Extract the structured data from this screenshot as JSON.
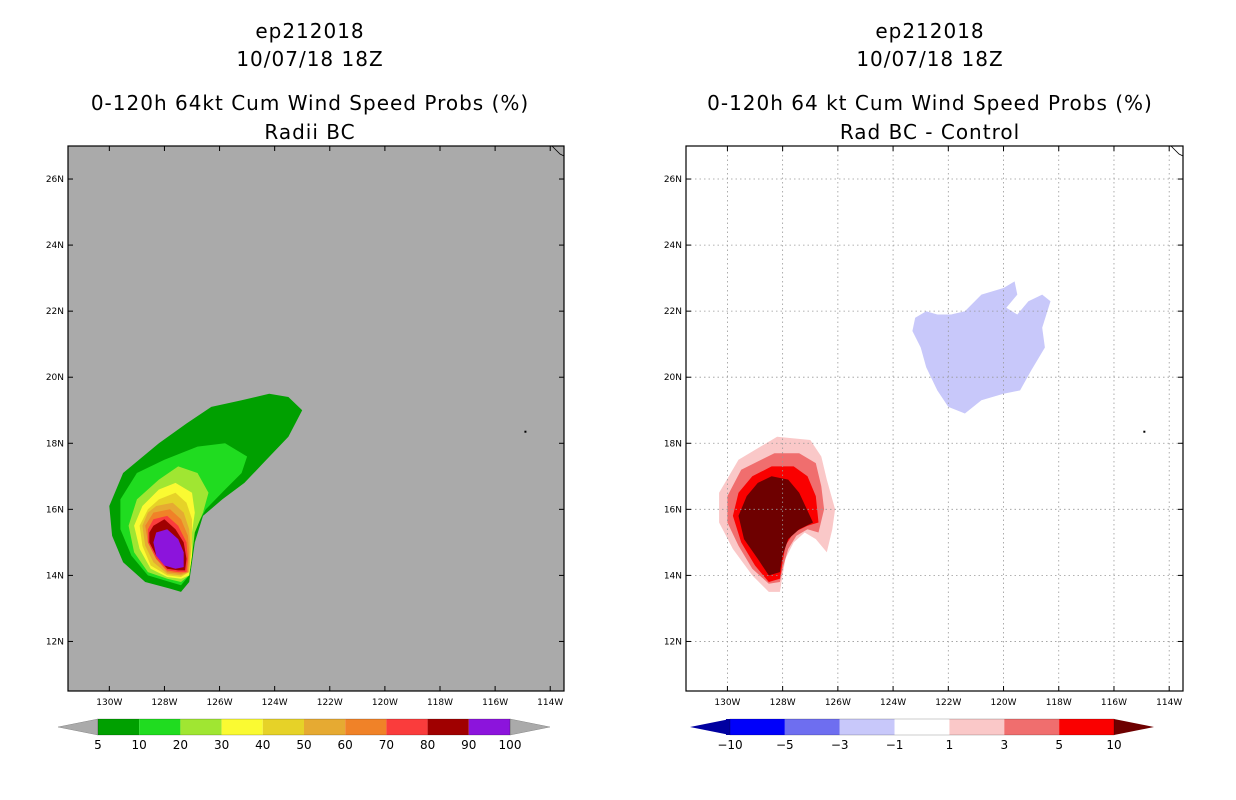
{
  "chart_data": [
    {
      "type": "heatmap",
      "storm": "ep212018",
      "datetime": "10/07/18 18Z",
      "title": "0-120h 64kt Cum Wind Speed Probs (%)",
      "subtitle": "Radii BC",
      "background_color": "#aaaaaa",
      "xlim": [
        -131.5,
        -113.5
      ],
      "ylim": [
        10.5,
        27
      ],
      "xticks": [
        "130W",
        "128W",
        "126W",
        "124W",
        "122W",
        "120W",
        "118W",
        "116W",
        "114W"
      ],
      "yticks": [
        "12N",
        "14N",
        "16N",
        "18N",
        "20N",
        "22N",
        "24N",
        "26N"
      ],
      "grid": false,
      "colorbar_labels": [
        "5",
        "10",
        "20",
        "30",
        "40",
        "50",
        "60",
        "70",
        "80",
        "90",
        "100"
      ],
      "colorbar_colors": [
        "#00a000",
        "#20dc20",
        "#a0e632",
        "#fafa32",
        "#e6d228",
        "#e6aa32",
        "#f08228",
        "#fa3c3c",
        "#a00000",
        "#8c14dc"
      ],
      "contours": [
        {
          "level": 5,
          "color": "#00a000",
          "points": [
            [
              -128.2,
              18.0
            ],
            [
              -127.2,
              18.6
            ],
            [
              -126.3,
              19.1
            ],
            [
              -125.2,
              19.3
            ],
            [
              -124.2,
              19.5
            ],
            [
              -123.5,
              19.4
            ],
            [
              -123.0,
              19.0
            ],
            [
              -123.5,
              18.2
            ],
            [
              -124.3,
              17.5
            ],
            [
              -125.1,
              16.8
            ],
            [
              -125.9,
              16.3
            ],
            [
              -126.6,
              15.8
            ],
            [
              -126.9,
              15.0
            ],
            [
              -127.0,
              14.4
            ],
            [
              -127.1,
              13.8
            ],
            [
              -127.4,
              13.5
            ],
            [
              -127.8,
              13.6
            ],
            [
              -128.7,
              13.8
            ],
            [
              -129.5,
              14.4
            ],
            [
              -129.9,
              15.2
            ],
            [
              -130.0,
              16.1
            ],
            [
              -129.5,
              17.1
            ]
          ]
        },
        {
          "level": 10,
          "color": "#20dc20",
          "points": [
            [
              -128.0,
              17.5
            ],
            [
              -126.8,
              17.9
            ],
            [
              -125.8,
              18.0
            ],
            [
              -125.0,
              17.6
            ],
            [
              -125.2,
              17.1
            ],
            [
              -125.8,
              16.6
            ],
            [
              -126.5,
              16.0
            ],
            [
              -126.9,
              15.4
            ],
            [
              -127.0,
              14.7
            ],
            [
              -127.1,
              14.0
            ],
            [
              -127.4,
              13.7
            ],
            [
              -127.8,
              13.8
            ],
            [
              -128.6,
              14.0
            ],
            [
              -129.2,
              14.6
            ],
            [
              -129.6,
              15.4
            ],
            [
              -129.6,
              16.3
            ],
            [
              -129.0,
              17.1
            ]
          ]
        },
        {
          "level": 20,
          "color": "#a0e632",
          "points": [
            [
              -128.2,
              16.9
            ],
            [
              -127.5,
              17.3
            ],
            [
              -126.8,
              17.1
            ],
            [
              -126.4,
              16.5
            ],
            [
              -126.6,
              15.9
            ],
            [
              -126.9,
              15.3
            ],
            [
              -127.0,
              14.6
            ],
            [
              -127.1,
              14.0
            ],
            [
              -127.4,
              13.8
            ],
            [
              -127.9,
              13.9
            ],
            [
              -128.6,
              14.1
            ],
            [
              -129.1,
              14.7
            ],
            [
              -129.3,
              15.5
            ],
            [
              -129.0,
              16.3
            ]
          ]
        },
        {
          "level": 30,
          "color": "#fafa32",
          "points": [
            [
              -128.2,
              16.6
            ],
            [
              -127.6,
              16.8
            ],
            [
              -127.0,
              16.5
            ],
            [
              -126.9,
              15.9
            ],
            [
              -127.0,
              15.3
            ],
            [
              -127.0,
              14.6
            ],
            [
              -127.1,
              14.0
            ],
            [
              -127.4,
              13.9
            ],
            [
              -127.9,
              13.95
            ],
            [
              -128.5,
              14.2
            ],
            [
              -128.9,
              14.8
            ],
            [
              -129.1,
              15.5
            ],
            [
              -128.8,
              16.1
            ]
          ]
        },
        {
          "level": 40,
          "color": "#e6d228",
          "points": [
            [
              -128.2,
              16.3
            ],
            [
              -127.6,
              16.5
            ],
            [
              -127.2,
              16.2
            ],
            [
              -127.0,
              15.7
            ],
            [
              -127.0,
              15.0
            ],
            [
              -127.1,
              14.1
            ],
            [
              -127.4,
              13.95
            ],
            [
              -127.9,
              14.0
            ],
            [
              -128.5,
              14.3
            ],
            [
              -128.8,
              14.9
            ],
            [
              -128.9,
              15.5
            ],
            [
              -128.6,
              16.0
            ]
          ]
        },
        {
          "level": 50,
          "color": "#e6aa32",
          "points": [
            [
              -128.3,
              16.1
            ],
            [
              -127.7,
              16.2
            ],
            [
              -127.3,
              15.9
            ],
            [
              -127.1,
              15.4
            ],
            [
              -127.05,
              14.8
            ],
            [
              -127.1,
              14.1
            ],
            [
              -127.4,
              14.0
            ],
            [
              -127.9,
              14.05
            ],
            [
              -128.4,
              14.4
            ],
            [
              -128.7,
              14.9
            ],
            [
              -128.8,
              15.5
            ],
            [
              -128.6,
              15.9
            ]
          ]
        },
        {
          "level": 60,
          "color": "#f08228",
          "points": [
            [
              -128.4,
              15.9
            ],
            [
              -127.8,
              16.0
            ],
            [
              -127.4,
              15.7
            ],
            [
              -127.15,
              15.2
            ],
            [
              -127.1,
              14.7
            ],
            [
              -127.15,
              14.1
            ],
            [
              -127.4,
              14.05
            ],
            [
              -127.9,
              14.1
            ],
            [
              -128.3,
              14.5
            ],
            [
              -128.6,
              15.0
            ],
            [
              -128.7,
              15.5
            ]
          ]
        },
        {
          "level": 70,
          "color": "#fa3c3c",
          "points": [
            [
              -128.4,
              15.7
            ],
            [
              -127.9,
              15.8
            ],
            [
              -127.5,
              15.5
            ],
            [
              -127.2,
              15.0
            ],
            [
              -127.15,
              14.5
            ],
            [
              -127.2,
              14.1
            ],
            [
              -127.5,
              14.1
            ],
            [
              -127.9,
              14.15
            ],
            [
              -128.3,
              14.5
            ],
            [
              -128.6,
              15.0
            ],
            [
              -128.6,
              15.4
            ]
          ]
        },
        {
          "level": 80,
          "color": "#a00000",
          "points": [
            [
              -128.4,
              15.5
            ],
            [
              -128.0,
              15.7
            ],
            [
              -127.6,
              15.4
            ],
            [
              -127.3,
              15.0
            ],
            [
              -127.2,
              14.5
            ],
            [
              -127.25,
              14.15
            ],
            [
              -127.5,
              14.15
            ],
            [
              -127.9,
              14.2
            ],
            [
              -128.3,
              14.6
            ],
            [
              -128.55,
              15.0
            ],
            [
              -128.55,
              15.3
            ]
          ]
        },
        {
          "level": 90,
          "color": "#8c14dc",
          "points": [
            [
              -128.3,
              15.3
            ],
            [
              -127.9,
              15.4
            ],
            [
              -127.5,
              15.1
            ],
            [
              -127.3,
              14.7
            ],
            [
              -127.3,
              14.25
            ],
            [
              -127.6,
              14.2
            ],
            [
              -128.0,
              14.3
            ],
            [
              -128.3,
              14.6
            ],
            [
              -128.4,
              15.0
            ]
          ]
        }
      ],
      "markers": [
        {
          "lon": -114.9,
          "lat": 18.35
        }
      ]
    },
    {
      "type": "heatmap",
      "storm": "ep212018",
      "datetime": "10/07/18 18Z",
      "title": "0-120h 64 kt Cum Wind Speed Probs (%)",
      "subtitle": "Rad BC - Control",
      "background_color": "#ffffff",
      "xlim": [
        -131.5,
        -113.5
      ],
      "ylim": [
        10.5,
        27
      ],
      "xticks": [
        "130W",
        "128W",
        "126W",
        "124W",
        "122W",
        "120W",
        "118W",
        "116W",
        "114W"
      ],
      "yticks": [
        "12N",
        "14N",
        "16N",
        "18N",
        "20N",
        "22N",
        "24N",
        "26N"
      ],
      "grid": true,
      "colorbar_labels": [
        "-10",
        "-5",
        "-3",
        "-1",
        "1",
        "3",
        "5",
        "10"
      ],
      "colorbar_colors": [
        "#0000a0",
        "#0000fa",
        "#6e6ef0",
        "#c8c8fa",
        "#ffffff",
        "#fac8c8",
        "#f06e6e",
        "#fa0000",
        "#6e0000"
      ],
      "contours": [
        {
          "level": -3,
          "color": "#c8c8fa",
          "points": [
            [
              -121.4,
              22.0
            ],
            [
              -120.8,
              22.5
            ],
            [
              -120.0,
              22.7
            ],
            [
              -119.6,
              22.9
            ],
            [
              -119.5,
              22.5
            ],
            [
              -119.9,
              22.1
            ],
            [
              -119.5,
              21.9
            ],
            [
              -119.1,
              22.3
            ],
            [
              -118.6,
              22.5
            ],
            [
              -118.3,
              22.3
            ],
            [
              -118.6,
              21.5
            ],
            [
              -118.5,
              20.9
            ],
            [
              -119.0,
              20.2
            ],
            [
              -119.4,
              19.6
            ],
            [
              -120.0,
              19.5
            ],
            [
              -120.8,
              19.3
            ],
            [
              -121.4,
              18.9
            ],
            [
              -122.0,
              19.1
            ],
            [
              -122.4,
              19.6
            ],
            [
              -122.8,
              20.3
            ],
            [
              -123.0,
              20.9
            ],
            [
              -123.3,
              21.4
            ],
            [
              -123.2,
              21.8
            ],
            [
              -122.8,
              22.0
            ],
            [
              -122.4,
              21.9
            ],
            [
              -121.9,
              21.9
            ]
          ]
        },
        {
          "level": 1,
          "color": "#fac8c8",
          "points": [
            [
              -128.2,
              18.2
            ],
            [
              -127.0,
              18.1
            ],
            [
              -126.6,
              17.6
            ],
            [
              -126.4,
              16.9
            ],
            [
              -126.1,
              16.0
            ],
            [
              -126.2,
              15.4
            ],
            [
              -126.4,
              14.7
            ],
            [
              -126.8,
              15.1
            ],
            [
              -127.2,
              15.3
            ],
            [
              -127.6,
              15.0
            ],
            [
              -127.9,
              14.5
            ],
            [
              -128.0,
              14.0
            ],
            [
              -128.1,
              13.5
            ],
            [
              -128.5,
              13.5
            ],
            [
              -129.1,
              14.0
            ],
            [
              -129.8,
              14.8
            ],
            [
              -130.3,
              15.6
            ],
            [
              -130.3,
              16.5
            ],
            [
              -129.6,
              17.5
            ]
          ]
        },
        {
          "level": 3,
          "color": "#f06e6e",
          "points": [
            [
              -128.3,
              17.7
            ],
            [
              -127.4,
              17.7
            ],
            [
              -126.8,
              17.4
            ],
            [
              -126.6,
              16.7
            ],
            [
              -126.5,
              16.0
            ],
            [
              -126.7,
              15.3
            ],
            [
              -127.1,
              15.4
            ],
            [
              -127.5,
              15.2
            ],
            [
              -127.8,
              14.8
            ],
            [
              -128.0,
              14.2
            ],
            [
              -128.1,
              13.8
            ],
            [
              -128.5,
              13.75
            ],
            [
              -129.1,
              14.2
            ],
            [
              -129.6,
              14.9
            ],
            [
              -130.0,
              15.6
            ],
            [
              -130.0,
              16.4
            ],
            [
              -129.5,
              17.2
            ]
          ]
        },
        {
          "level": 5,
          "color": "#fa0000",
          "points": [
            [
              -128.4,
              17.3
            ],
            [
              -127.6,
              17.3
            ],
            [
              -127.1,
              17.0
            ],
            [
              -126.8,
              16.4
            ],
            [
              -126.7,
              15.6
            ],
            [
              -127.1,
              15.5
            ],
            [
              -127.6,
              15.3
            ],
            [
              -127.9,
              14.9
            ],
            [
              -128.0,
              14.4
            ],
            [
              -128.1,
              13.9
            ],
            [
              -128.5,
              13.8
            ],
            [
              -129.0,
              14.3
            ],
            [
              -129.5,
              15.0
            ],
            [
              -129.8,
              15.8
            ],
            [
              -129.6,
              16.5
            ],
            [
              -129.1,
              17.0
            ]
          ]
        },
        {
          "level": 10,
          "color": "#6e0000",
          "points": [
            [
              -128.4,
              17.0
            ],
            [
              -127.8,
              16.9
            ],
            [
              -127.4,
              16.5
            ],
            [
              -126.9,
              15.6
            ],
            [
              -127.4,
              15.4
            ],
            [
              -127.8,
              15.1
            ],
            [
              -128.0,
              14.6
            ],
            [
              -128.1,
              14.1
            ],
            [
              -128.5,
              14.0
            ],
            [
              -128.9,
              14.5
            ],
            [
              -129.4,
              15.1
            ],
            [
              -129.6,
              15.8
            ],
            [
              -129.3,
              16.4
            ],
            [
              -128.9,
              16.8
            ]
          ]
        }
      ],
      "markers": [
        {
          "lon": -114.9,
          "lat": 18.35
        }
      ]
    }
  ]
}
